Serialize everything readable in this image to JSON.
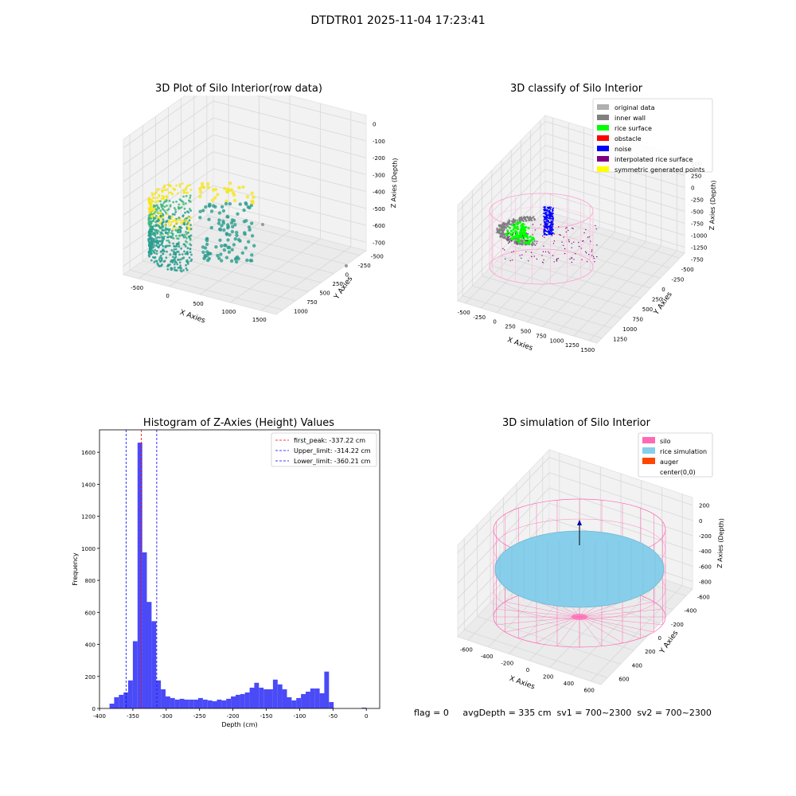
{
  "figure_title": "DTDTR01 2025-11-04 17:23:41",
  "footer": "flag = 0     avgDepth = 335 cm  sv1 = 700~2300  sv2 = 700~2300",
  "chart_data": [
    {
      "type": "scatter",
      "title": "3D Plot of Silo Interior(row data)",
      "xlabel": "X Axies",
      "ylabel": "Y Axies",
      "zlabel": "Z Axies (Depth)",
      "x_ticks": [
        "-500",
        "0",
        "500",
        "1000",
        "1500"
      ],
      "y_ticks": [
        "-500",
        "-250",
        "0",
        "250",
        "500",
        "750",
        "1000"
      ],
      "z_ticks": [
        "0",
        "-100",
        "-200",
        "-300",
        "-400",
        "-500",
        "-600",
        "-700"
      ],
      "colors": {
        "low": "#2a9d8f",
        "high": "#f5e61f",
        "mid": "#3fb87e"
      }
    },
    {
      "type": "scatter",
      "title": "3D classify of Silo Interior",
      "xlabel": "X Axies",
      "ylabel": "Y Axies",
      "zlabel": "Z Axies (Depth)",
      "x_ticks": [
        "-500",
        "-250",
        "0",
        "250",
        "500",
        "750",
        "1000",
        "1250",
        "1500"
      ],
      "y_ticks": [
        "-750",
        "-500",
        "-250",
        "0",
        "250",
        "500",
        "750",
        "1000",
        "1250"
      ],
      "z_ticks": [
        "500",
        "250",
        "0",
        "-250",
        "-500",
        "-750",
        "-1000",
        "-1250"
      ],
      "legend": [
        {
          "label": "original data",
          "color": "#b0b0b0"
        },
        {
          "label": "inner wall",
          "color": "#808080"
        },
        {
          "label": "rice surface",
          "color": "#00ff00"
        },
        {
          "label": "obstacle",
          "color": "#ff0000"
        },
        {
          "label": "noise",
          "color": "#0000ff"
        },
        {
          "label": "interpolated rice surface",
          "color": "#800080"
        },
        {
          "label": "symmetric generated points",
          "color": "#ffff00"
        }
      ]
    },
    {
      "type": "bar",
      "title": "Histogram of Z-Axies (Height) Values",
      "xlabel": "Depth (cm)",
      "ylabel": "Frequency",
      "xlim": [
        -400,
        20
      ],
      "ylim": [
        0,
        1740
      ],
      "bin_width": 7,
      "bar_color": "#4a4af7",
      "bins": [
        {
          "x": -385,
          "y": 30
        },
        {
          "x": -378,
          "y": 70
        },
        {
          "x": -371,
          "y": 85
        },
        {
          "x": -364,
          "y": 100
        },
        {
          "x": -357,
          "y": 175
        },
        {
          "x": -350,
          "y": 420
        },
        {
          "x": -343,
          "y": 1660
        },
        {
          "x": -336,
          "y": 975
        },
        {
          "x": -329,
          "y": 665
        },
        {
          "x": -322,
          "y": 545
        },
        {
          "x": -315,
          "y": 175
        },
        {
          "x": -308,
          "y": 120
        },
        {
          "x": -301,
          "y": 75
        },
        {
          "x": -294,
          "y": 65
        },
        {
          "x": -287,
          "y": 55
        },
        {
          "x": -280,
          "y": 60
        },
        {
          "x": -273,
          "y": 55
        },
        {
          "x": -266,
          "y": 55
        },
        {
          "x": -259,
          "y": 55
        },
        {
          "x": -252,
          "y": 65
        },
        {
          "x": -245,
          "y": 55
        },
        {
          "x": -238,
          "y": 50
        },
        {
          "x": -231,
          "y": 45
        },
        {
          "x": -224,
          "y": 55
        },
        {
          "x": -217,
          "y": 50
        },
        {
          "x": -210,
          "y": 60
        },
        {
          "x": -203,
          "y": 75
        },
        {
          "x": -196,
          "y": 85
        },
        {
          "x": -189,
          "y": 90
        },
        {
          "x": -182,
          "y": 100
        },
        {
          "x": -175,
          "y": 130
        },
        {
          "x": -168,
          "y": 160
        },
        {
          "x": -161,
          "y": 130
        },
        {
          "x": -154,
          "y": 120
        },
        {
          "x": -147,
          "y": 120
        },
        {
          "x": -140,
          "y": 180
        },
        {
          "x": -133,
          "y": 150
        },
        {
          "x": -126,
          "y": 120
        },
        {
          "x": -119,
          "y": 70
        },
        {
          "x": -112,
          "y": 50
        },
        {
          "x": -105,
          "y": 65
        },
        {
          "x": -98,
          "y": 90
        },
        {
          "x": -91,
          "y": 105
        },
        {
          "x": -84,
          "y": 125
        },
        {
          "x": -77,
          "y": 125
        },
        {
          "x": -70,
          "y": 95
        },
        {
          "x": -63,
          "y": 230
        },
        {
          "x": -56,
          "y": 40
        },
        {
          "x": -7,
          "y": 5
        }
      ],
      "x_ticks": [
        -400,
        -350,
        -300,
        -250,
        -200,
        -150,
        -100,
        -50,
        0
      ],
      "y_ticks": [
        0,
        200,
        400,
        600,
        800,
        1000,
        1200,
        1400,
        1600
      ],
      "lines": [
        {
          "label": "first_peak: -337.22 cm",
          "x": -337.22,
          "color": "#ff0000"
        },
        {
          "label": "Upper_limit: -314.22 cm",
          "x": -314.22,
          "color": "#0000ff"
        },
        {
          "label": "Lower_limit: -360.21 cm",
          "x": -360.21,
          "color": "#0000ff"
        }
      ]
    },
    {
      "type": "scatter",
      "title": "3D simulation of Silo Interior",
      "xlabel": "X Axies",
      "ylabel": "Y Axies",
      "zlabel": "Z Axies (Depth)",
      "x_ticks": [
        "-600",
        "-400",
        "-200",
        "0",
        "200",
        "400",
        "600"
      ],
      "y_ticks": [
        "-600",
        "-400",
        "-200",
        "0",
        "200",
        "400",
        "600"
      ],
      "z_ticks": [
        "200",
        "0",
        "-200",
        "-400",
        "-600",
        "-800"
      ],
      "legend": [
        {
          "label": "silo",
          "color": "#ff69b4"
        },
        {
          "label": "rice simulation",
          "color": "#87ceeb"
        },
        {
          "label": "auger",
          "color": "#ff4500"
        },
        {
          "label": "center(0,0)",
          "color": "#ffffff"
        }
      ]
    }
  ]
}
